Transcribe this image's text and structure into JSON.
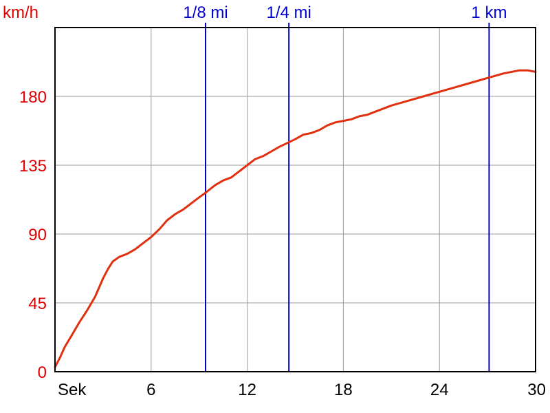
{
  "chart_data": {
    "type": "line",
    "title": "",
    "ylabel": "km/h",
    "xlabel": "Sek",
    "xlim": [
      0,
      30
    ],
    "ylim": [
      0,
      225
    ],
    "grid": true,
    "x_ticks": [
      {
        "value": 0,
        "label": "Sek"
      },
      {
        "value": 6,
        "label": "6"
      },
      {
        "value": 12,
        "label": "12"
      },
      {
        "value": 18,
        "label": "18"
      },
      {
        "value": 24,
        "label": "24"
      },
      {
        "value": 30,
        "label": "30"
      }
    ],
    "x_grid": [
      0,
      6,
      12,
      18,
      24,
      30
    ],
    "y_ticks": [
      {
        "value": 0,
        "label": "0"
      },
      {
        "value": 45,
        "label": "45"
      },
      {
        "value": 90,
        "label": "90"
      },
      {
        "value": 135,
        "label": "135"
      },
      {
        "value": 180,
        "label": "180"
      }
    ],
    "y_grid": [
      0,
      45,
      90,
      135,
      180,
      225
    ],
    "markers": [
      {
        "label": "1/8 mi",
        "x": 9.4
      },
      {
        "label": "1/4 mi",
        "x": 14.6
      },
      {
        "label": "1 km",
        "x": 27.1
      }
    ],
    "series": [
      {
        "x": [
          0,
          0.3,
          0.6,
          1.0,
          1.5,
          2.0,
          2.5,
          3.0,
          3.3,
          3.6,
          4.0,
          4.5,
          5.0,
          5.5,
          6.0,
          6.5,
          7.0,
          7.5,
          8.0,
          8.5,
          9.0,
          9.4,
          10.0,
          10.5,
          11.0,
          11.5,
          12.0,
          12.5,
          13.0,
          13.5,
          14.0,
          14.6,
          15.0,
          15.5,
          16.0,
          16.5,
          17.0,
          17.5,
          18.0,
          18.5,
          19.0,
          19.5,
          20.0,
          21.0,
          22.0,
          23.0,
          24.0,
          25.0,
          26.0,
          27.0,
          28.0,
          29.0,
          29.5,
          30.0
        ],
        "values": [
          3,
          9,
          16,
          23,
          32,
          40,
          49,
          61,
          67,
          72,
          75,
          77,
          80,
          84,
          88,
          93,
          99,
          103,
          106,
          110,
          114,
          117,
          122,
          125,
          127,
          131,
          135,
          139,
          141,
          144,
          147,
          150,
          152,
          155,
          156,
          158,
          161,
          163,
          164,
          165,
          167,
          168,
          170,
          174,
          177,
          180,
          183,
          186,
          189,
          192,
          195,
          197,
          197,
          196
        ],
        "color": "#e03010"
      }
    ],
    "colors": {
      "curve": "#e03010",
      "markers": "#0000c0",
      "marker_text": "#0000cc",
      "y_axis_text": "#e00000",
      "grid": "#9a9a9a",
      "frame": "#000000"
    }
  }
}
